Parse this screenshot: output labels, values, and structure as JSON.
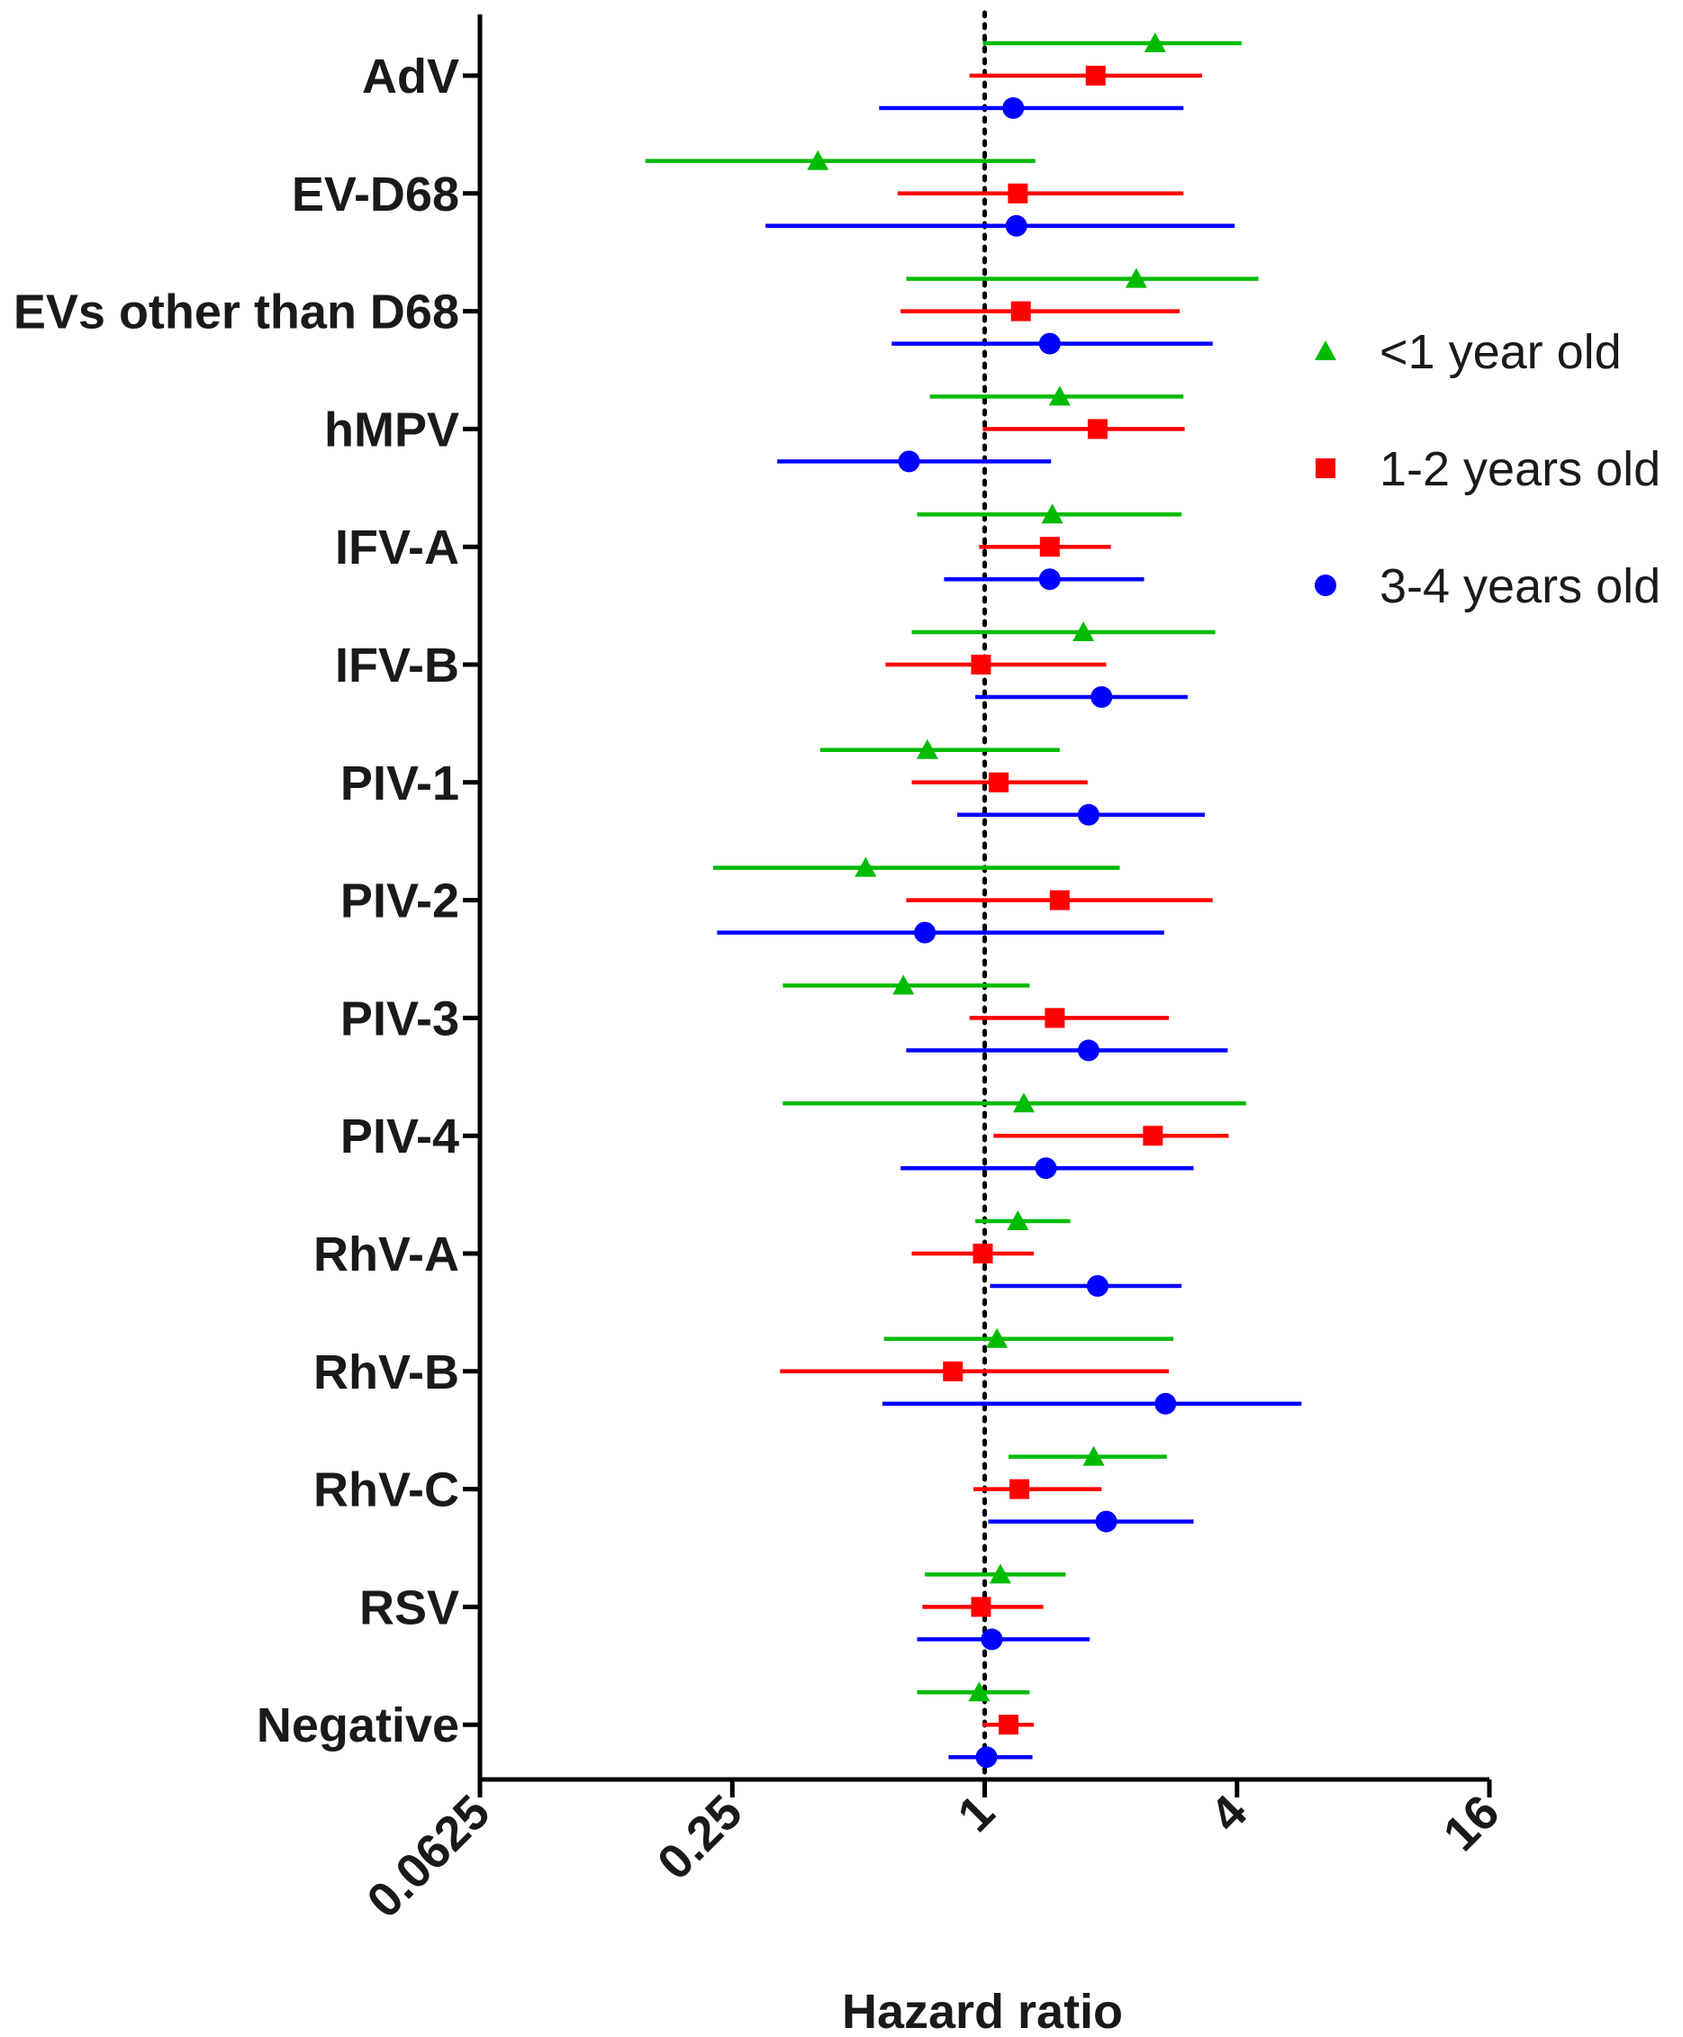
{
  "chart_data": {
    "type": "scatter",
    "subtype": "forest-plot",
    "xlabel": "Hazard ratio",
    "xscale": "log2",
    "xlim": [
      0.0625,
      16
    ],
    "xticks": [
      0.0625,
      0.25,
      1,
      4,
      16
    ],
    "xtick_labels": [
      "0.0625",
      "0.25",
      "1",
      "4",
      "16"
    ],
    "reference_line": 1,
    "grid": false,
    "legend_position": "right",
    "categories": [
      "AdV",
      "EV-D68",
      "EVs other than D68",
      "hMPV",
      "IFV-A",
      "IFV-B",
      "PIV-1",
      "PIV-2",
      "PIV-3",
      "PIV-4",
      "RhV-A",
      "RhV-B",
      "RhV-C",
      "RSV",
      "Negative"
    ],
    "series": [
      {
        "name": "<1 year old",
        "color": "#00bb00",
        "marker": "triangle",
        "estimates": [
          2.55,
          0.4,
          2.3,
          1.51,
          1.45,
          1.72,
          0.73,
          0.52,
          0.64,
          1.24,
          1.2,
          1.07,
          1.82,
          1.09,
          0.97
        ],
        "lower": [
          0.99,
          0.155,
          0.65,
          0.74,
          0.69,
          0.67,
          0.405,
          0.225,
          0.33,
          0.33,
          0.95,
          0.575,
          1.14,
          0.72,
          0.69
        ],
        "upper": [
          4.1,
          1.32,
          4.5,
          2.98,
          2.95,
          3.55,
          1.51,
          2.1,
          1.28,
          4.2,
          1.6,
          2.82,
          2.72,
          1.56,
          1.28
        ]
      },
      {
        "name": "1-2 years old",
        "color": "#ff0000",
        "marker": "square",
        "estimates": [
          1.84,
          1.2,
          1.22,
          1.86,
          1.43,
          0.98,
          1.08,
          1.51,
          1.47,
          2.52,
          0.99,
          0.84,
          1.21,
          0.98,
          1.14
        ],
        "lower": [
          0.92,
          0.62,
          0.63,
          0.99,
          0.97,
          0.58,
          0.67,
          0.65,
          0.92,
          1.05,
          0.67,
          0.325,
          0.94,
          0.71,
          0.99
        ],
        "upper": [
          3.3,
          2.98,
          2.92,
          3.0,
          2.0,
          1.95,
          1.76,
          3.5,
          2.75,
          3.82,
          1.31,
          2.75,
          1.9,
          1.38,
          1.31
        ]
      },
      {
        "name": "3-4 years old",
        "color": "#0000ff",
        "marker": "circle",
        "estimates": [
          1.17,
          1.19,
          1.43,
          0.66,
          1.43,
          1.9,
          1.77,
          0.72,
          1.77,
          1.4,
          1.86,
          2.7,
          1.95,
          1.04,
          1.01
        ],
        "lower": [
          0.56,
          0.3,
          0.6,
          0.32,
          0.8,
          0.95,
          0.86,
          0.23,
          0.65,
          0.63,
          1.03,
          0.57,
          1.02,
          0.69,
          0.82
        ],
        "upper": [
          2.98,
          3.95,
          3.5,
          1.44,
          2.4,
          3.05,
          3.35,
          2.68,
          3.8,
          3.15,
          2.95,
          5.7,
          3.15,
          1.78,
          1.3
        ]
      }
    ]
  }
}
